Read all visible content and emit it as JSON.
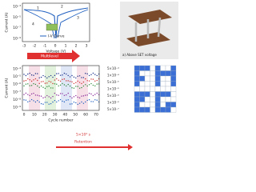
{
  "iv_plot": {
    "legend": "I-V Curve",
    "xlabel": "Voltage (V)",
    "ylabel": "Current (A)",
    "xticks": [
      "-3",
      "-2",
      "-1",
      "0",
      "1",
      "2",
      "3"
    ],
    "yticks": [
      "10⁻³",
      "10⁻⁵",
      "10⁻⁷",
      "10⁻⁹"
    ],
    "steps": [
      "1",
      "2",
      "3",
      "4"
    ]
  },
  "device_image": {
    "caption": "a) Above SET voltage"
  },
  "multilevel": "Multilevel",
  "cycle_plot": {
    "xlabel": "Cycle number",
    "ylabel": "Current (A)",
    "xticks": [
      "0",
      "10",
      "20",
      "30",
      "40",
      "50",
      "60",
      "70"
    ],
    "yticks": [
      "10⁻⁴",
      "10⁻⁵",
      "10⁻⁶",
      "10⁻⁷",
      "10⁻⁸",
      "10⁻⁹"
    ]
  },
  "retention": {
    "time": "5×10⁴ s",
    "label": "Retention"
  },
  "levels": [
    "5×10⁻⁴",
    "1×10⁻⁴",
    "5×10⁻⁵",
    "1×10⁻⁵",
    "5×10⁻⁶",
    "1×10⁻⁶",
    "5×10⁻⁷"
  ]
}
